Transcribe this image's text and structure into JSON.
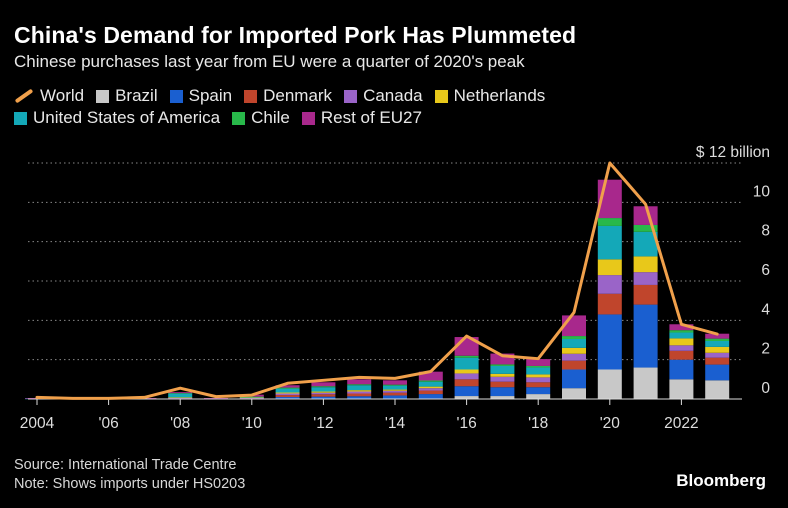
{
  "title": "China's Demand for Imported Pork Has Plummeted",
  "subtitle": "Chinese purchases last year from EU were a quarter of 2020's peak",
  "source": "Source: International Trade Centre",
  "note": "Note: Shows imports under HS0203",
  "brand": "Bloomberg",
  "colors": {
    "World": "#f0a04b",
    "Brazil": "#c8c8c8",
    "Spain": "#1a5fd0",
    "Denmark": "#c0452c",
    "Canada": "#9a64c8",
    "Netherlands": "#e8c81a",
    "United States of America": "#14a8b8",
    "Chile": "#28b84a",
    "Rest of EU27": "#a8288c",
    "grid": "#888888",
    "axis": "#dddddd"
  },
  "chart_data": {
    "type": "bar",
    "stacked": true,
    "title": "China's Demand for Imported Pork Has Plummeted",
    "ylabel": "$ billion",
    "ylim": [
      0,
      12
    ],
    "ytick_labels": [
      "0",
      "2",
      "4",
      "6",
      "8",
      "10",
      "$ 12 billion"
    ],
    "yticks": [
      0,
      2,
      4,
      6,
      8,
      10,
      12
    ],
    "xtick_labels": [
      "2004",
      "'06",
      "'08",
      "'10",
      "'12",
      "'14",
      "'16",
      "'18",
      "'20",
      "2022"
    ],
    "xticks": [
      2004,
      2006,
      2008,
      2010,
      2012,
      2014,
      2016,
      2018,
      2020,
      2022
    ],
    "years": [
      2004,
      2005,
      2006,
      2007,
      2008,
      2009,
      2010,
      2011,
      2012,
      2013,
      2014,
      2015,
      2016,
      2017,
      2018,
      2019,
      2020,
      2021,
      2022,
      2023
    ],
    "series": [
      {
        "name": "Brazil",
        "values": [
          0,
          0,
          0,
          0,
          0,
          0,
          0,
          0,
          0,
          0,
          0,
          0,
          0.15,
          0.15,
          0.25,
          0.55,
          1.5,
          1.6,
          1.0,
          0.95
        ]
      },
      {
        "name": "Spain",
        "values": [
          0,
          0,
          0,
          0,
          0.02,
          0,
          0.02,
          0.1,
          0.12,
          0.14,
          0.18,
          0.25,
          0.5,
          0.45,
          0.35,
          0.95,
          2.8,
          3.2,
          1.0,
          0.8
        ]
      },
      {
        "name": "Denmark",
        "values": [
          0,
          0,
          0,
          0,
          0.02,
          0,
          0.02,
          0.1,
          0.12,
          0.14,
          0.14,
          0.18,
          0.35,
          0.28,
          0.25,
          0.45,
          1.05,
          1.0,
          0.45,
          0.35
        ]
      },
      {
        "name": "Canada",
        "values": [
          0,
          0,
          0,
          0,
          0.02,
          0,
          0.02,
          0.08,
          0.08,
          0.1,
          0.1,
          0.12,
          0.3,
          0.25,
          0.25,
          0.35,
          0.95,
          0.65,
          0.28,
          0.25
        ]
      },
      {
        "name": "Netherlands",
        "values": [
          0,
          0,
          0,
          0,
          0.02,
          0,
          0.02,
          0.05,
          0.06,
          0.07,
          0.06,
          0.08,
          0.2,
          0.15,
          0.15,
          0.3,
          0.8,
          0.8,
          0.35,
          0.3
        ]
      },
      {
        "name": "United States of America",
        "values": [
          0.02,
          0,
          0,
          0.03,
          0.2,
          0.03,
          0.02,
          0.2,
          0.22,
          0.25,
          0.2,
          0.25,
          0.6,
          0.4,
          0.35,
          0.45,
          1.7,
          1.25,
          0.3,
          0.3
        ]
      },
      {
        "name": "Chile",
        "values": [
          0,
          0,
          0,
          0,
          0.02,
          0,
          0.02,
          0.05,
          0.05,
          0.05,
          0.05,
          0.06,
          0.1,
          0.08,
          0.08,
          0.15,
          0.4,
          0.35,
          0.12,
          0.12
        ]
      },
      {
        "name": "Rest of EU27",
        "values": [
          0.03,
          0,
          0,
          0.02,
          0.05,
          0.02,
          0.1,
          0.12,
          0.2,
          0.25,
          0.22,
          0.45,
          0.95,
          0.55,
          0.35,
          1.05,
          1.95,
          0.95,
          0.3,
          0.25
        ]
      }
    ],
    "line": {
      "name": "World",
      "values": [
        0.08,
        0.03,
        0.03,
        0.08,
        0.55,
        0.12,
        0.2,
        0.8,
        0.95,
        1.1,
        1.05,
        1.4,
        3.2,
        2.2,
        2.05,
        4.4,
        12.0,
        9.9,
        3.8,
        3.3
      ]
    },
    "legend": [
      "World",
      "Brazil",
      "Spain",
      "Denmark",
      "Canada",
      "Netherlands",
      "United States of America",
      "Chile",
      "Rest of EU27"
    ]
  }
}
